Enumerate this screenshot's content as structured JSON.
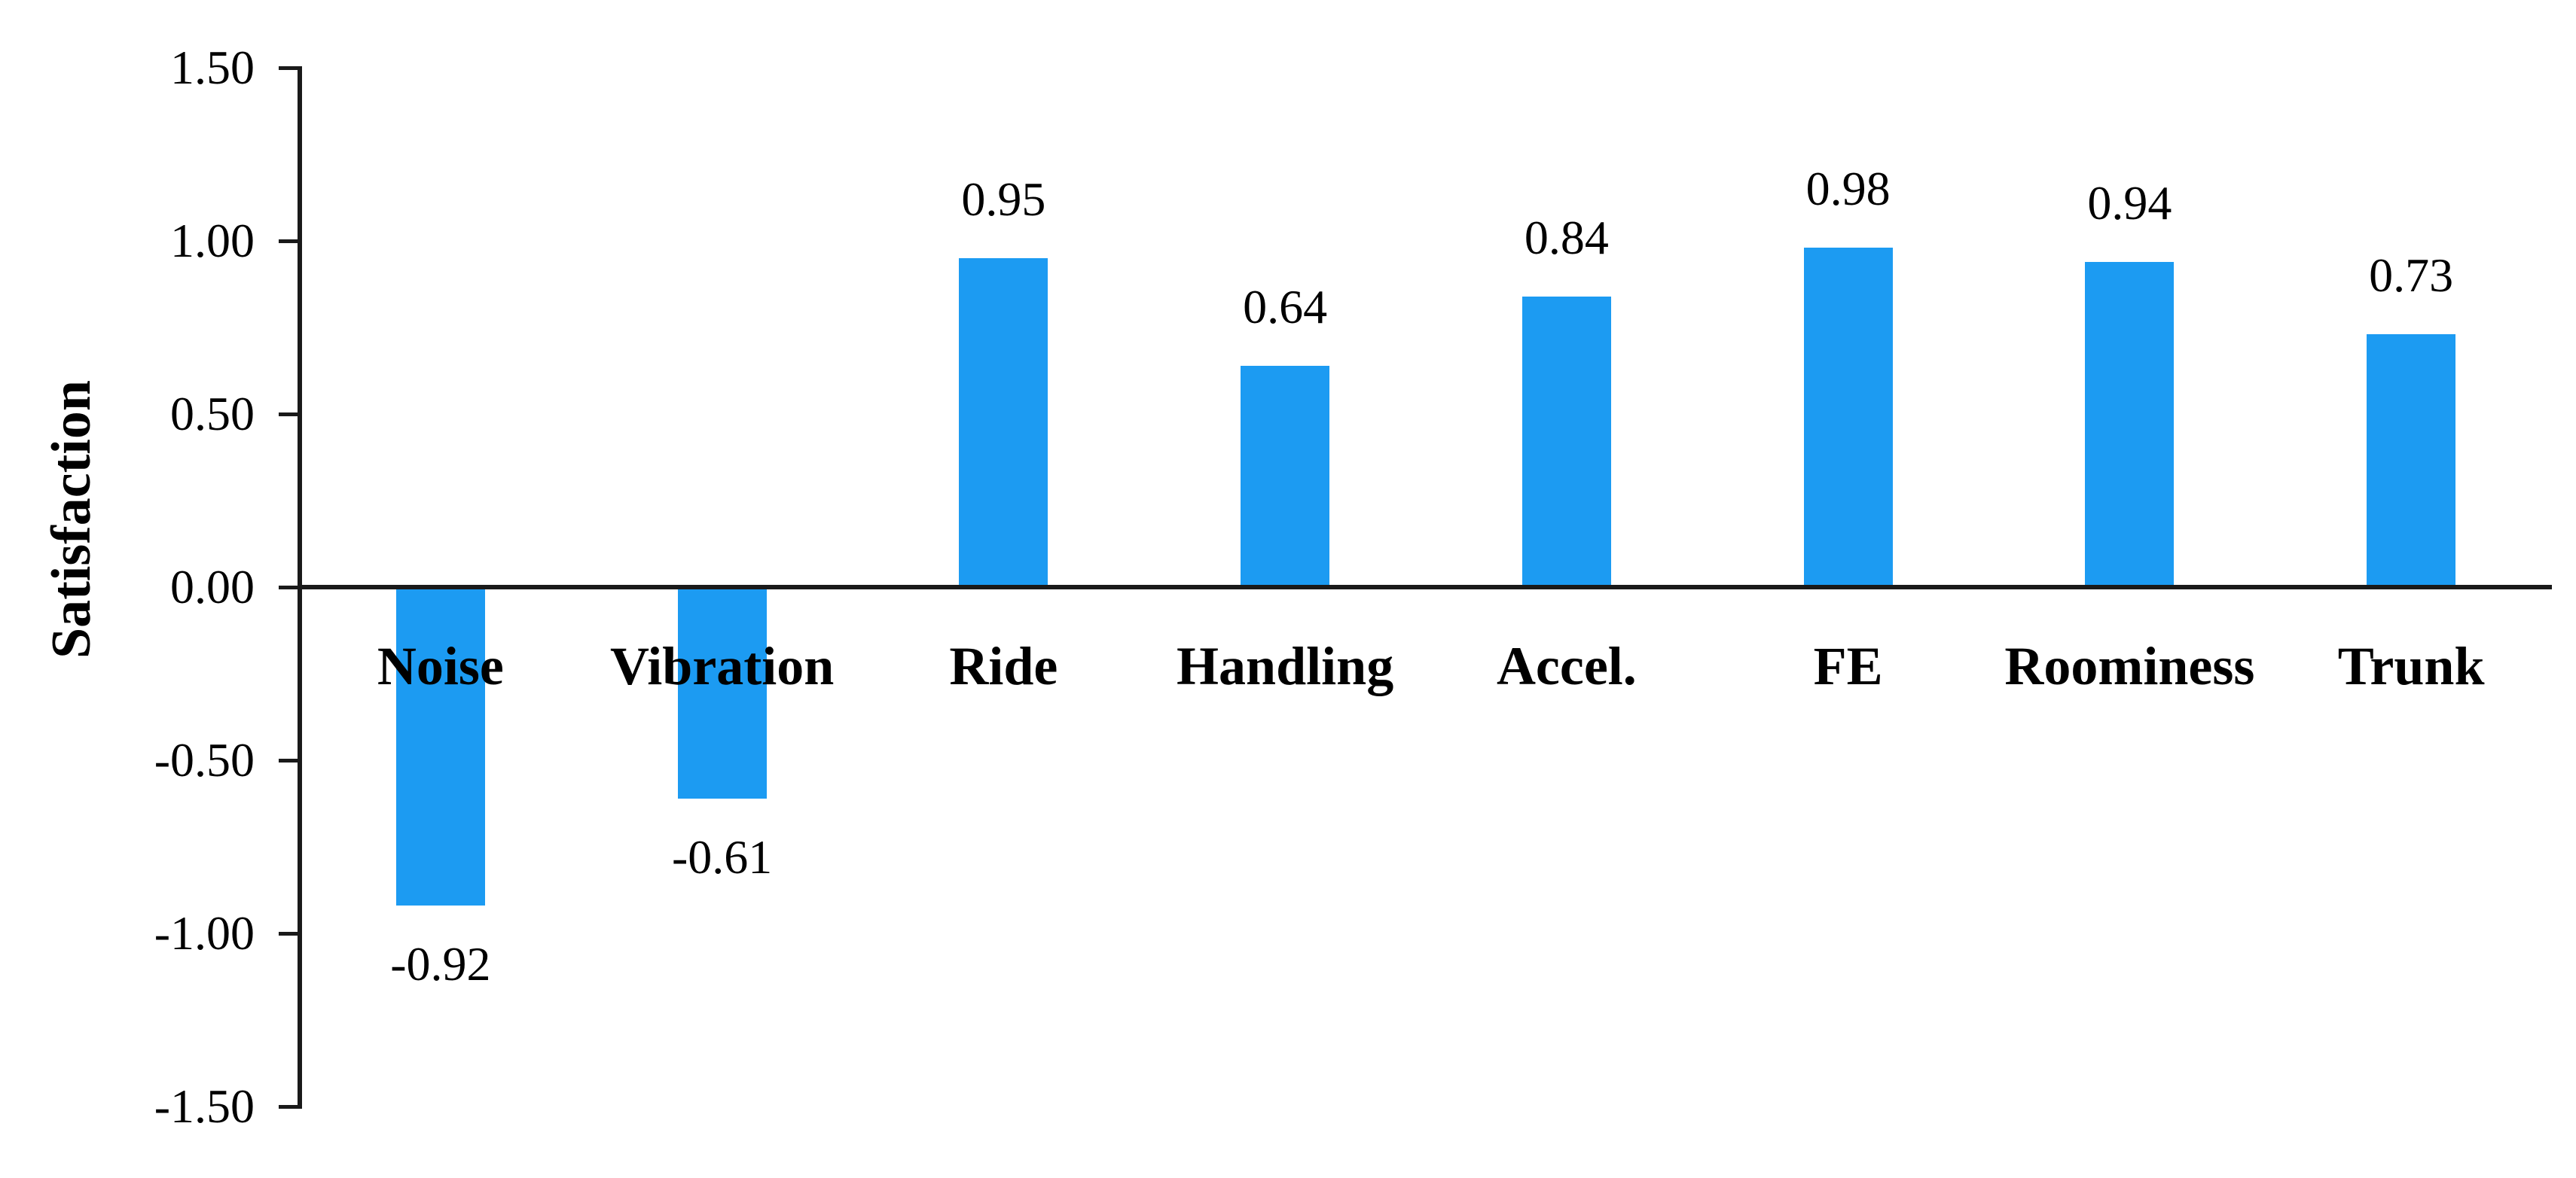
{
  "figure": {
    "background_color": "#ffffff",
    "axis_color": "#1a1a1a",
    "text_color": "#000000"
  },
  "chart_data": {
    "type": "bar",
    "title": "",
    "xlabel": "",
    "ylabel": "Satisfaction",
    "categories": [
      "Noise",
      "Vibration",
      "Ride",
      "Handling",
      "Accel.",
      "FE",
      "Roominess",
      "Trunk"
    ],
    "values": [
      -0.92,
      -0.61,
      0.95,
      0.64,
      0.84,
      0.98,
      0.94,
      0.73
    ],
    "data_labels": [
      "-0.92",
      "-0.61",
      "0.95",
      "0.64",
      "0.84",
      "0.98",
      "0.94",
      "0.73"
    ],
    "bar_color": "#1C9BF2",
    "ylim": [
      -1.5,
      1.5
    ],
    "ytick_values": [
      1.5,
      1.0,
      0.5,
      0.0,
      -0.5,
      -1.0,
      -1.5
    ],
    "ytick_labels": [
      "1.50",
      "1.00",
      "0.50",
      "0.00",
      "-0.50",
      "-1.00",
      "-1.50"
    ],
    "grid": "off",
    "legend": "none",
    "category_label_position": "below-zero-axis",
    "data_label_position": "outside-end"
  }
}
